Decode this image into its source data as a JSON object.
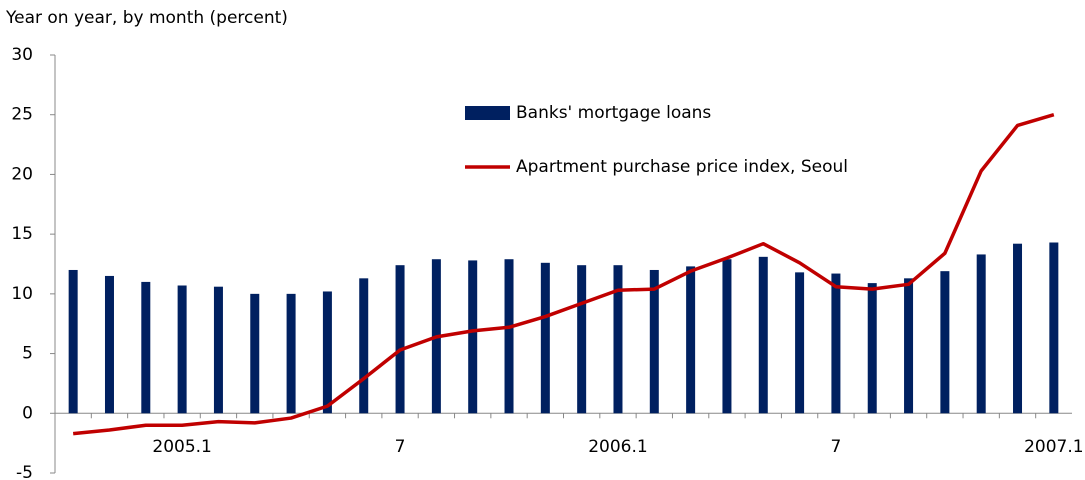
{
  "chart_data": {
    "type": "bar_line",
    "y_axis_label": "Year on year, by month (percent)",
    "categories": [
      null,
      null,
      null,
      "2005.1",
      null,
      null,
      null,
      null,
      null,
      "7",
      null,
      null,
      null,
      null,
      null,
      "2006.1",
      null,
      null,
      null,
      null,
      null,
      "7",
      null,
      null,
      null,
      null,
      null,
      "2007.1"
    ],
    "series": [
      {
        "name": "Banks' mortgage loans",
        "type": "bar",
        "color": "#002060",
        "values": [
          12.0,
          11.5,
          11.0,
          10.7,
          10.6,
          10.0,
          10.0,
          10.2,
          11.3,
          12.4,
          12.9,
          12.8,
          12.9,
          12.6,
          12.4,
          12.4,
          12.0,
          12.3,
          12.9,
          13.1,
          11.8,
          11.7,
          10.9,
          11.3,
          11.9,
          13.3,
          14.2,
          14.3
        ]
      },
      {
        "name": "Apartment purchase price index, Seoul",
        "type": "line",
        "color": "#c00000",
        "values": [
          -1.7,
          -1.4,
          -1.0,
          -1.0,
          -0.7,
          -0.8,
          -0.4,
          0.6,
          2.9,
          5.3,
          6.4,
          6.9,
          7.2,
          8.1,
          9.2,
          10.3,
          10.4,
          11.9,
          13.0,
          14.2,
          12.6,
          10.6,
          10.4,
          10.8,
          13.4,
          20.3,
          24.1,
          25.0
        ]
      }
    ],
    "ylim": [
      -5,
      30
    ],
    "yticks": [
      -5,
      0,
      5,
      10,
      15,
      20,
      25,
      30
    ],
    "grid": false,
    "legend": "upper center"
  }
}
